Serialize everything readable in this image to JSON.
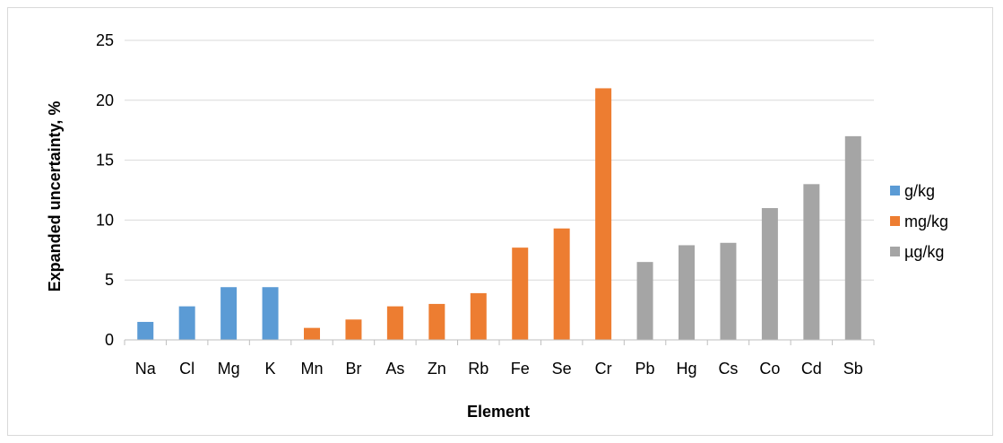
{
  "chart_data": {
    "type": "bar",
    "categories": [
      "Na",
      "Cl",
      "Mg",
      "K",
      "Mn",
      "Br",
      "As",
      "Zn",
      "Rb",
      "Fe",
      "Se",
      "Cr",
      "Pb",
      "Hg",
      "Cs",
      "Co",
      "Cd",
      "Sb"
    ],
    "values": [
      1.5,
      2.8,
      4.4,
      4.4,
      1.0,
      1.7,
      2.8,
      3.0,
      3.9,
      7.7,
      9.3,
      21.0,
      6.5,
      7.9,
      8.1,
      11.0,
      13.0,
      17.0
    ],
    "groups": [
      "g/kg",
      "g/kg",
      "g/kg",
      "g/kg",
      "mg/kg",
      "mg/kg",
      "mg/kg",
      "mg/kg",
      "mg/kg",
      "mg/kg",
      "mg/kg",
      "mg/kg",
      "µg/kg",
      "µg/kg",
      "µg/kg",
      "µg/kg",
      "µg/kg",
      "µg/kg"
    ],
    "series": [
      {
        "name": "g/kg",
        "color": "#5b9bd5"
      },
      {
        "name": "mg/kg",
        "color": "#ed7d31"
      },
      {
        "name": "µg/kg",
        "color": "#a5a5a5"
      }
    ],
    "xlabel": "Element",
    "ylabel": "Expanded uncertainty, %",
    "ylim": [
      0,
      25
    ],
    "yticks": [
      0,
      5,
      10,
      15,
      20,
      25
    ],
    "grid": true,
    "legend_position": "right"
  }
}
